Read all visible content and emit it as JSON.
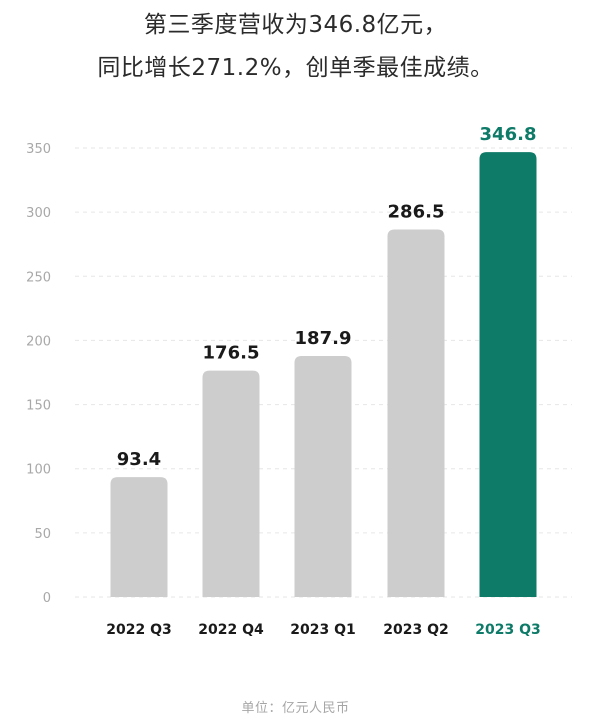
{
  "title": {
    "line1": "第三季度营收为346.8亿元，",
    "line2": "同比增长271.2%，创单季最佳成绩。"
  },
  "unit_note": "单位：亿元人民币",
  "colors": {
    "bar_default": "#cdcdcd",
    "bar_highlight": "#0e7a68",
    "grid": "#e6e6e6",
    "axis_text": "#a8a8a8",
    "label_text": "#1a1a1a"
  },
  "chart_data": {
    "type": "bar",
    "categories": [
      "2022 Q3",
      "2022 Q4",
      "2023 Q1",
      "2023 Q2",
      "2023 Q3"
    ],
    "values": [
      93.4,
      176.5,
      187.9,
      286.5,
      346.8
    ],
    "value_labels": [
      "93.4",
      "176.5",
      "187.9",
      "286.5",
      "346.8"
    ],
    "highlight_index": 4,
    "ylim": [
      0,
      350
    ],
    "yticks": [
      0,
      50,
      100,
      150,
      200,
      250,
      300,
      350
    ],
    "grid": true,
    "title": "",
    "xlabel": "",
    "ylabel": ""
  }
}
